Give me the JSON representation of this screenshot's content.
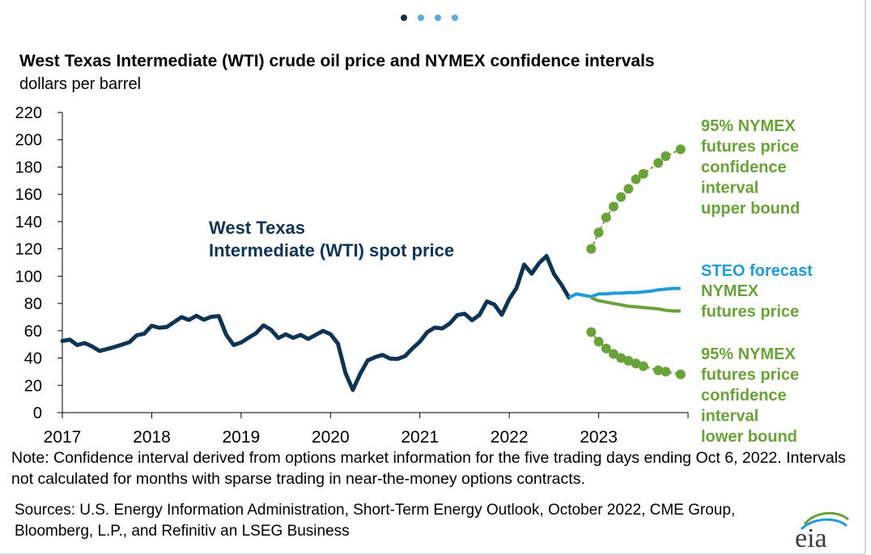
{
  "carousel": {
    "count": 4,
    "active": 0
  },
  "title": "West Texas Intermediate (WTI) crude oil price and NYMEX confidence intervals",
  "subtitle": "dollars per barrel",
  "note": "Note: Confidence interval derived from options market information for the five trading days ending Oct 6, 2022. Intervals not calculated for months with sparse trading in near-the-money options contracts.",
  "sources": "Sources: U.S. Energy Information Administration, Short-Term Energy Outlook, October 2022, CME Group, Bloomberg, L.P., and Refinitiv an LSEG Business",
  "logo_text": "eia",
  "colors": {
    "wti": "#0e3453",
    "steo": "#1f9bd7",
    "nymex": "#6aa23a",
    "axis": "#000000"
  },
  "chart_data": {
    "type": "line",
    "yticks": [
      0,
      20,
      40,
      60,
      80,
      100,
      120,
      140,
      160,
      180,
      200,
      220
    ],
    "ylim": [
      0,
      220
    ],
    "xticks": [
      "2017",
      "2018",
      "2019",
      "2020",
      "2021",
      "2022",
      "2023"
    ],
    "xlim": [
      "2017-01",
      "2023-12"
    ],
    "grid": false,
    "labels": {
      "wti": [
        "West Texas",
        "Intermediate (WTI) spot price"
      ],
      "upper": [
        "95% NYMEX",
        "futures price",
        "confidence",
        "interval",
        "upper bound"
      ],
      "steo": [
        "STEO forecast"
      ],
      "nymex": [
        "NYMEX",
        "futures price"
      ],
      "lower": [
        "95% NYMEX",
        "futures price",
        "confidence",
        "interval",
        "lower bound"
      ]
    },
    "series": [
      {
        "key": "wti",
        "x": [
          "2017-01",
          "2017-02",
          "2017-03",
          "2017-04",
          "2017-05",
          "2017-06",
          "2017-07",
          "2017-08",
          "2017-09",
          "2017-10",
          "2017-11",
          "2017-12",
          "2018-01",
          "2018-02",
          "2018-03",
          "2018-04",
          "2018-05",
          "2018-06",
          "2018-07",
          "2018-08",
          "2018-09",
          "2018-10",
          "2018-11",
          "2018-12",
          "2019-01",
          "2019-02",
          "2019-03",
          "2019-04",
          "2019-05",
          "2019-06",
          "2019-07",
          "2019-08",
          "2019-09",
          "2019-10",
          "2019-11",
          "2019-12",
          "2020-01",
          "2020-02",
          "2020-03",
          "2020-04",
          "2020-05",
          "2020-06",
          "2020-07",
          "2020-08",
          "2020-09",
          "2020-10",
          "2020-11",
          "2020-12",
          "2021-01",
          "2021-02",
          "2021-03",
          "2021-04",
          "2021-05",
          "2021-06",
          "2021-07",
          "2021-08",
          "2021-09",
          "2021-10",
          "2021-11",
          "2021-12",
          "2022-01",
          "2022-02",
          "2022-03",
          "2022-04",
          "2022-05",
          "2022-06",
          "2022-07",
          "2022-08",
          "2022-09"
        ],
        "values": [
          52.5,
          53.5,
          49.5,
          51,
          48.5,
          45.2,
          46.6,
          48.1,
          49.8,
          51.6,
          56.7,
          57.9,
          63.7,
          62.2,
          62.7,
          66.3,
          70,
          67.9,
          71,
          68.1,
          70.2,
          70.8,
          57,
          49.5,
          51.4,
          54.9,
          58.2,
          63.9,
          60.8,
          54.7,
          57.4,
          54.8,
          57,
          54,
          57,
          59.9,
          57.5,
          50.5,
          29.2,
          16.6,
          28.6,
          38.3,
          40.7,
          42.3,
          39.6,
          39.4,
          41.4,
          47,
          52,
          59,
          62.3,
          61.7,
          65.2,
          71.4,
          72.5,
          67.7,
          71.6,
          81.5,
          79.2,
          71.7,
          83.2,
          91.6,
          108.5,
          101.8,
          109.6,
          114.8,
          101.6,
          93.7,
          84.3
        ]
      },
      {
        "key": "steo",
        "x": [
          "2022-09",
          "2022-10",
          "2022-11",
          "2022-12",
          "2023-01",
          "2023-02",
          "2023-03",
          "2023-04",
          "2023-05",
          "2023-06",
          "2023-07",
          "2023-08",
          "2023-09",
          "2023-10",
          "2023-11",
          "2023-12"
        ],
        "values": [
          84.3,
          87,
          86,
          85,
          87,
          87,
          87.5,
          87.5,
          88,
          88,
          88.5,
          89,
          90,
          90.5,
          91,
          91
        ]
      },
      {
        "key": "nymex",
        "x": [
          "2022-12",
          "2023-01",
          "2023-02",
          "2023-03",
          "2023-04",
          "2023-05",
          "2023-06",
          "2023-07",
          "2023-08",
          "2023-09",
          "2023-10",
          "2023-11",
          "2023-12"
        ],
        "values": [
          84,
          82,
          81,
          80,
          79,
          78,
          77.5,
          77,
          76.5,
          76,
          75,
          74.5,
          74.5
        ]
      },
      {
        "key": "upper",
        "x": [
          "2022-12",
          "2023-01",
          "2023-02",
          "2023-03",
          "2023-04",
          "2023-05",
          "2023-06",
          "2023-07",
          "2023-09",
          "2023-10",
          "2023-12"
        ],
        "values": [
          120,
          132,
          143,
          151,
          158,
          164,
          171,
          175,
          183,
          188,
          193
        ]
      },
      {
        "key": "lower",
        "x": [
          "2022-12",
          "2023-01",
          "2023-02",
          "2023-03",
          "2023-04",
          "2023-05",
          "2023-06",
          "2023-07",
          "2023-09",
          "2023-10",
          "2023-12"
        ],
        "values": [
          59,
          52,
          47,
          43,
          40,
          38,
          36,
          34,
          31,
          30,
          28
        ]
      }
    ]
  }
}
